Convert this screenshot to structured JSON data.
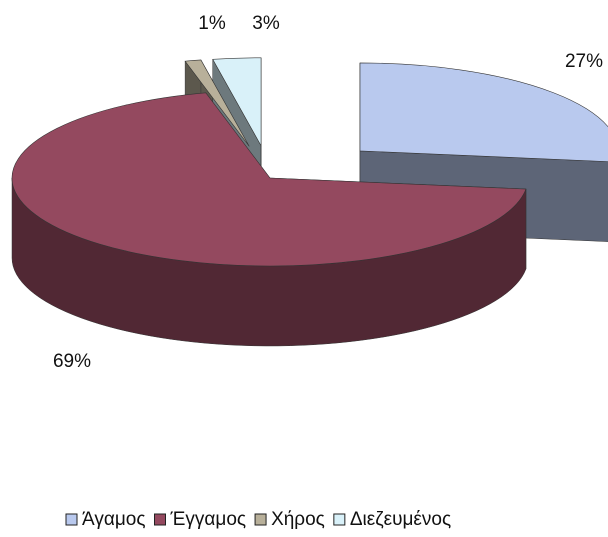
{
  "chart_data": {
    "type": "pie",
    "categories": [
      "Άγαμος",
      "Έγγαμος",
      "Χήρος",
      "Διεζευμένος"
    ],
    "values": [
      27,
      69,
      1,
      3
    ],
    "value_labels": [
      "27%",
      "69%",
      "1%",
      "3%"
    ],
    "colors": [
      "#b9c9ee",
      "#94495f",
      "#b8b09a",
      "#d9f1f9"
    ]
  }
}
